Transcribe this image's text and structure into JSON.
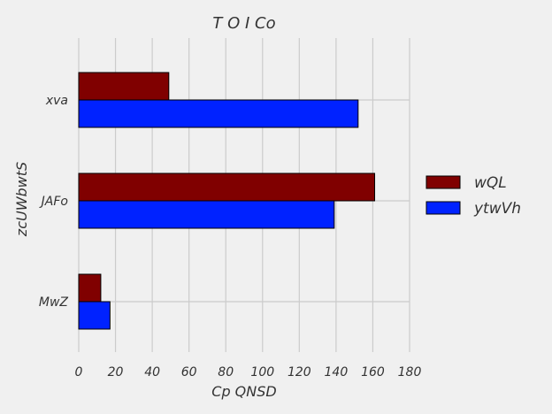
{
  "chart_data": {
    "type": "bar",
    "orientation": "horizontal",
    "title": "T O I Co",
    "xlabel": "Cp QNSD",
    "ylabel": "zcUWbwtS",
    "categories": [
      "xva",
      "JAFo",
      "MwZ"
    ],
    "series": [
      {
        "name": "wQL",
        "color": "#800000",
        "values": [
          49,
          161,
          12
        ]
      },
      {
        "name": "ytwVh",
        "color": "#0022ff",
        "values": [
          152,
          139,
          17
        ]
      }
    ],
    "xlim": [
      0,
      180
    ],
    "xticks": [
      0,
      20,
      40,
      60,
      80,
      100,
      120,
      140,
      160,
      180
    ],
    "grid": true,
    "legend_position": "right"
  }
}
